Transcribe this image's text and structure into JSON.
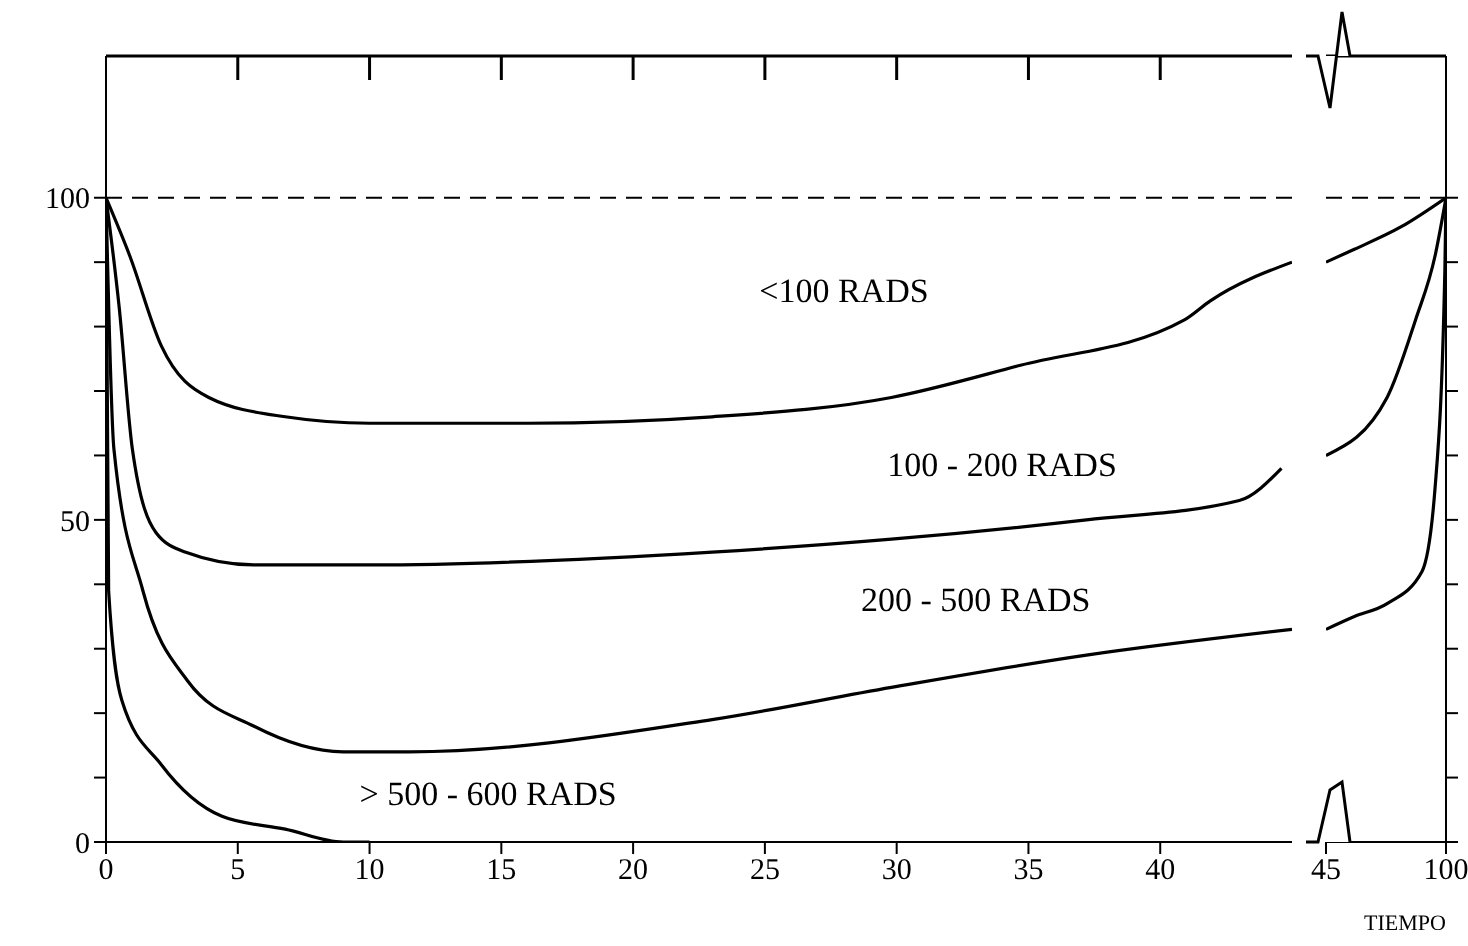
{
  "chart_data": [
    {
      "type": "line",
      "xlim": [
        0,
        45
      ],
      "xticks": [
        0,
        5,
        10,
        15,
        20,
        25,
        30,
        35,
        40
      ],
      "ylim": [
        0,
        122
      ],
      "yticks": [
        0,
        {
          "value": 10,
          "label": null
        },
        {
          "value": 20,
          "label": null
        },
        {
          "value": 30,
          "label": null
        },
        {
          "value": 40,
          "label": null
        },
        50,
        {
          "value": 60,
          "label": null
        },
        {
          "value": 70,
          "label": null
        },
        {
          "value": 80,
          "label": null
        },
        {
          "value": 90,
          "label": null
        },
        100
      ],
      "grid": false,
      "legend": false,
      "marker": "none",
      "line_style": "solid",
      "ref_lines": [
        {
          "axis": "y",
          "value": 100,
          "line_style": "dashed",
          "color": "#000000"
        }
      ],
      "series": [
        {
          "name": "<100 RADS",
          "color": "#000000",
          "x": [
            0,
            0.9,
            2.1,
            3.9,
            6.8,
            10,
            16,
            23,
            29.8,
            34.7,
            40.9,
            41.9,
            45
          ],
          "values": [
            100,
            91,
            77,
            69,
            66,
            65,
            65,
            66,
            69,
            74,
            81,
            84,
            90
          ]
        },
        {
          "name": "100 - 200 RADS",
          "color": "#000000",
          "x": [
            0,
            0.5,
            1,
            1.9,
            3,
            5.6,
            10,
            23,
            29.8,
            37.2,
            43,
            44.6
          ],
          "values": [
            100,
            83,
            61,
            48,
            45,
            43,
            43,
            45,
            47,
            50,
            53,
            58
          ]
        },
        {
          "name": "200 - 500 RADS",
          "color": "#000000",
          "x": [
            0,
            0.3,
            1.4,
            3.1,
            5.6,
            9,
            11.5,
            23,
            29.8,
            37.2,
            45
          ],
          "values": [
            100,
            61,
            39,
            25,
            18,
            14,
            14,
            19,
            24,
            29,
            33
          ]
        },
        {
          "name": "> 500 - 600 RADS",
          "color": "#000000",
          "x": [
            0,
            0.1,
            0.6,
            2.1,
            4.4,
            6.8,
            9,
            10
          ],
          "values": [
            100,
            39,
            22,
            12,
            4,
            2,
            0,
            0
          ]
        }
      ]
    },
    {
      "type": "line",
      "xlabel": "TIEMPO",
      "xlim": [
        45,
        100
      ],
      "xticks": [
        45,
        100
      ],
      "ylim": [
        0,
        122
      ],
      "yticks": [
        0,
        10,
        20,
        30,
        40,
        50,
        60,
        70,
        80,
        90,
        100
      ],
      "tick_labels": "x",
      "grid": false,
      "legend": false,
      "marker": "none",
      "line_style": "solid",
      "ref_lines": [
        {
          "axis": "y",
          "value": 100,
          "line_style": "dashed",
          "color": "#000000"
        }
      ],
      "series": [
        {
          "color": "#000000",
          "x": [
            45,
            58,
            79.5,
            100
          ],
          "values": [
            90,
            92,
            95.5,
            100
          ]
        },
        {
          "color": "#000000",
          "x": [
            45,
            73,
            86,
            95,
            100
          ],
          "values": [
            60,
            69,
            81,
            91,
            100
          ]
        },
        {
          "color": "#000000",
          "x": [
            45,
            58,
            73,
            89,
            95,
            99.5,
            100
          ],
          "values": [
            33,
            35,
            37,
            42,
            55,
            89,
            100
          ]
        }
      ]
    }
  ]
}
